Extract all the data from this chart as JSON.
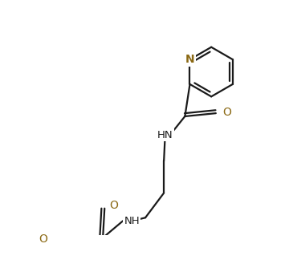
{
  "background_color": "#ffffff",
  "line_color": "#1a1a1a",
  "heteroatom_color": "#8B6914",
  "line_width": 1.6,
  "figsize": [
    3.55,
    3.29
  ],
  "dpi": 100,
  "xlim": [
    0,
    355
  ],
  "ylim": [
    0,
    329
  ]
}
